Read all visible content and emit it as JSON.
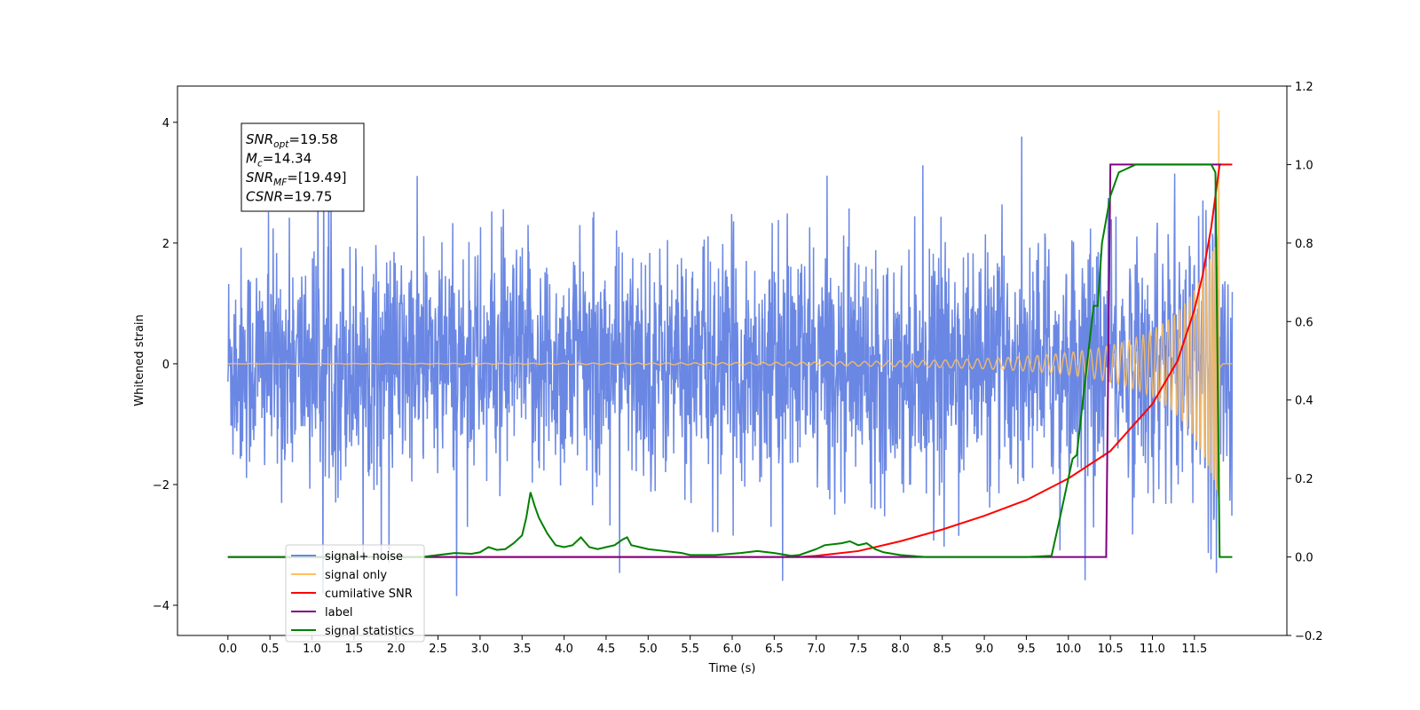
{
  "chart_data": {
    "type": "line",
    "title": "",
    "xlabel": "Time (s)",
    "ylabel": "Whitened strain",
    "xlim": [
      -0.6,
      12.6
    ],
    "ylim": [
      -4.5,
      4.6
    ],
    "y2lim": [
      -0.2,
      1.2
    ],
    "xticks": [
      "0.0",
      "0.5",
      "1.0",
      "1.5",
      "2.0",
      "2.5",
      "3.0",
      "3.5",
      "4.0",
      "4.5",
      "5.0",
      "5.5",
      "6.0",
      "6.5",
      "7.0",
      "7.5",
      "8.0",
      "8.5",
      "9.0",
      "9.5",
      "10.0",
      "10.5",
      "11.0",
      "11.5"
    ],
    "yticks": [
      "4",
      "2",
      "0",
      "−2",
      "−4"
    ],
    "y2ticks": [
      "1.2",
      "1.0",
      "0.8",
      "0.6",
      "0.4",
      "0.2",
      "0.0",
      "−0.2"
    ],
    "grid": false,
    "legend_position": "lower-left",
    "annotation": {
      "lines": [
        {
          "main": "SNR",
          "sub": "opt",
          "rest": "=19.58"
        },
        {
          "main": "M",
          "sub": "c",
          "rest": "=14.34"
        },
        {
          "main": "SNR",
          "sub": "MF",
          "rest": "=[19.49]"
        },
        {
          "main": "CSNR",
          "sub": "",
          "rest": "=19.75"
        }
      ]
    },
    "series": [
      {
        "name": "signal+ noise",
        "color": "#6a87e3",
        "axis": "left",
        "kind": "white noise, amplitude about ±2.5 with spikes to ±3.8, plus the chirp"
      },
      {
        "name": "signal only",
        "color": "#ffbf5f",
        "axis": "left",
        "kind": "chirp, amplitude growing from ~0.05 at 8 s to ~2.3 at 11.8 s, peak 4.2 at 11.8 s"
      },
      {
        "name": "cumilative SNR",
        "color": "#ff0000",
        "axis": "right",
        "x": [
          0.0,
          6.8,
          7.0,
          7.5,
          8.0,
          8.5,
          9.0,
          9.5,
          10.0,
          10.5,
          11.0,
          11.3,
          11.5,
          11.6,
          11.7,
          11.8,
          11.85,
          11.95
        ],
        "values": [
          0.0,
          0.0,
          0.003,
          0.015,
          0.04,
          0.07,
          0.105,
          0.145,
          0.2,
          0.27,
          0.39,
          0.5,
          0.63,
          0.72,
          0.84,
          1.0,
          1.0,
          1.0
        ]
      },
      {
        "name": "label",
        "color": "#800080",
        "axis": "right",
        "x": [
          0.0,
          10.45,
          10.5,
          11.8,
          11.82
        ],
        "values": [
          0.0,
          0.0,
          1.0,
          1.0,
          1.0
        ]
      },
      {
        "name": "signal statistics",
        "color": "#008000",
        "axis": "right",
        "x": [
          0.0,
          2.3,
          2.5,
          2.7,
          2.9,
          3.0,
          3.1,
          3.2,
          3.3,
          3.4,
          3.5,
          3.55,
          3.6,
          3.65,
          3.7,
          3.8,
          3.9,
          4.0,
          4.1,
          4.2,
          4.3,
          4.4,
          4.5,
          4.6,
          4.7,
          4.75,
          4.8,
          4.9,
          5.0,
          5.2,
          5.4,
          5.5,
          5.8,
          6.1,
          6.3,
          6.5,
          6.7,
          6.8,
          7.0,
          7.1,
          7.3,
          7.4,
          7.5,
          7.6,
          7.7,
          7.8,
          8.0,
          8.3,
          8.6,
          9.0,
          9.5,
          9.8,
          9.9,
          10.0,
          10.05,
          10.1,
          10.2,
          10.3,
          10.35,
          10.4,
          10.5,
          10.6,
          10.8,
          11.0,
          11.3,
          11.6,
          11.7,
          11.75,
          11.8,
          11.82,
          11.85,
          11.95
        ],
        "values": [
          0.0,
          0.0,
          0.005,
          0.01,
          0.008,
          0.012,
          0.025,
          0.018,
          0.02,
          0.035,
          0.055,
          0.1,
          0.165,
          0.13,
          0.1,
          0.06,
          0.03,
          0.025,
          0.03,
          0.05,
          0.025,
          0.02,
          0.025,
          0.03,
          0.045,
          0.05,
          0.03,
          0.025,
          0.02,
          0.015,
          0.01,
          0.005,
          0.005,
          0.01,
          0.015,
          0.01,
          0.003,
          0.005,
          0.02,
          0.03,
          0.035,
          0.04,
          0.03,
          0.035,
          0.02,
          0.012,
          0.005,
          0.0,
          0.0,
          0.0,
          0.0,
          0.003,
          0.1,
          0.2,
          0.25,
          0.26,
          0.45,
          0.64,
          0.64,
          0.8,
          0.92,
          0.98,
          1.0,
          1.0,
          1.0,
          1.0,
          1.0,
          0.98,
          0.0,
          0.0,
          0.0,
          0.0
        ]
      }
    ]
  }
}
